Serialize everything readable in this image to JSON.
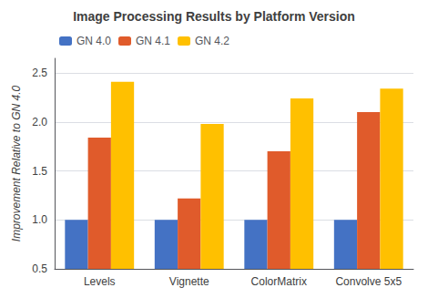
{
  "chart_data": {
    "type": "bar",
    "title": "Image Processing Results by Platform Version",
    "categories": [
      "Levels",
      "Vignette",
      "ColorMatrix",
      "Convolve 5x5"
    ],
    "series": [
      {
        "name": "GN 4.0",
        "color": "#4472C4",
        "values": [
          1.0,
          1.0,
          1.0,
          1.0
        ]
      },
      {
        "name": "GN 4.1",
        "color": "#E05B2B",
        "values": [
          1.84,
          1.22,
          1.7,
          2.1
        ]
      },
      {
        "name": "GN 4.2",
        "color": "#FFC000",
        "values": [
          2.41,
          1.98,
          2.24,
          2.34
        ]
      }
    ],
    "ylabel": "Improvement Relative to GN 4.0",
    "ylim": [
      0.5,
      2.65
    ],
    "yticks": [
      0.5,
      {
        "value": 1,
        "label": "1.0"
      },
      1.5,
      {
        "value": 2,
        "label": "2.0"
      },
      2.5
    ],
    "grid": true,
    "legend": "upper left"
  }
}
